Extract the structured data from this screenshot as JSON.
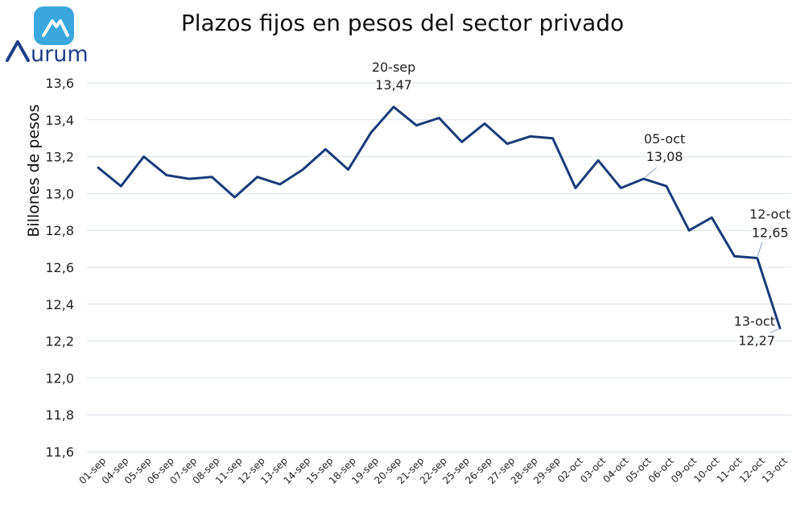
{
  "brand": {
    "name": "urum",
    "primary_color": "#1f3d8a",
    "accent_color": "#3aa7dd"
  },
  "chart_data": {
    "type": "line",
    "title": "Plazos fijos en pesos del sector privado",
    "xlabel": "",
    "ylabel": "Billones de pesos",
    "ylim": [
      11.6,
      13.6
    ],
    "yticks": [
      11.6,
      11.8,
      12.0,
      12.2,
      12.4,
      12.6,
      12.8,
      13.0,
      13.2,
      13.4,
      13.6
    ],
    "ytick_labels": [
      "11,6",
      "11,8",
      "12,0",
      "12,2",
      "12,4",
      "12,6",
      "12,8",
      "13,0",
      "13,2",
      "13,4",
      "13,6"
    ],
    "grid": true,
    "legend": "none",
    "line_color": "#1a3a7a",
    "categories": [
      "01-sep",
      "04-sep",
      "05-sep",
      "06-sep",
      "07-sep",
      "08-sep",
      "11-sep",
      "12-sep",
      "13-sep",
      "14-sep",
      "15-sep",
      "18-sep",
      "19-sep",
      "20-sep",
      "21-sep",
      "22-sep",
      "25-sep",
      "26-sep",
      "27-sep",
      "28-sep",
      "29-sep",
      "02-oct",
      "03-oct",
      "04-oct",
      "05-oct",
      "06-oct",
      "09-oct",
      "10-oct",
      "11-oct",
      "12-oct",
      "13-oct"
    ],
    "series": [
      {
        "name": "Plazos fijos",
        "values": [
          13.14,
          13.04,
          13.2,
          13.1,
          13.08,
          13.09,
          12.98,
          13.09,
          13.05,
          13.13,
          13.24,
          13.13,
          13.33,
          13.47,
          13.37,
          13.41,
          13.28,
          13.38,
          13.27,
          13.31,
          13.3,
          13.03,
          13.18,
          13.03,
          13.08,
          13.04,
          12.8,
          12.87,
          12.66,
          12.65,
          12.27
        ]
      }
    ],
    "annotations": [
      {
        "index": 13,
        "date": "20-sep",
        "value_label": "13,47"
      },
      {
        "index": 24,
        "date": "05-oct",
        "value_label": "13,08"
      },
      {
        "index": 29,
        "date": "12-oct",
        "value_label": "12,65"
      },
      {
        "index": 30,
        "date": "13-oct",
        "value_label": "12,27"
      }
    ]
  }
}
